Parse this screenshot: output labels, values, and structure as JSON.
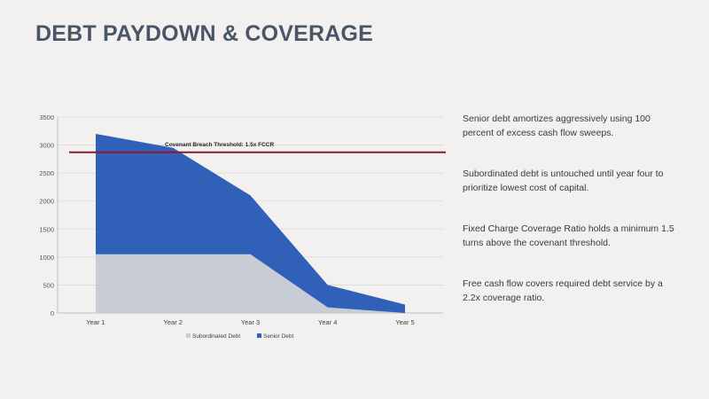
{
  "slide": {
    "title": "DEBT PAYDOWN & COVERAGE",
    "notes": [
      "Senior debt amortizes aggressively using 100 percent of excess cash flow sweeps.",
      "Subordinated debt is untouched until year four to prioritize lowest cost of capital.",
      "Fixed Charge Coverage Ratio holds a minimum 1.5 turns above the covenant threshold.",
      "Free cash flow covers required debt service by a 2.2x coverage ratio."
    ]
  },
  "colors": {
    "background": "#f2f1ef",
    "subordinated": "#c8ccd4",
    "senior": "#3060b8",
    "threshold": "#8b1a2e"
  },
  "chart_data": {
    "type": "area",
    "stacked": true,
    "categories": [
      "Year 1",
      "Year 2",
      "Year 3",
      "Year 4",
      "Year 5"
    ],
    "series": [
      {
        "name": "Subordinated Debt",
        "values": [
          1050,
          1050,
          1050,
          100,
          0
        ]
      },
      {
        "name": "Senior Debt",
        "values": [
          2150,
          1900,
          1050,
          400,
          150
        ]
      }
    ],
    "ylim": [
      0,
      3500
    ],
    "yticks": [
      0,
      500,
      1000,
      1500,
      2000,
      2500,
      3000,
      3500
    ],
    "grid": true,
    "legend_position": "bottom",
    "threshold": {
      "label": "Covenant Breach Threshold: 1.5x FCCR",
      "value": 2870
    }
  }
}
